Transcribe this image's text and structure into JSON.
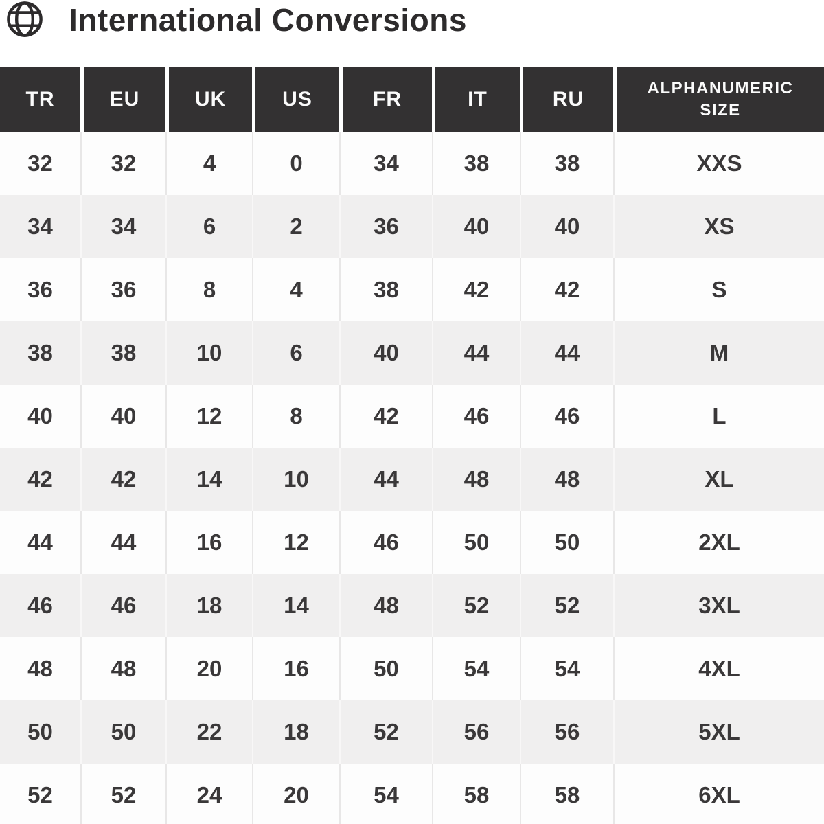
{
  "title": "International Conversions",
  "icons": {
    "header_icon": "globe-icon"
  },
  "colors": {
    "title_text": "#2d2b2c",
    "header_bg": "#333132",
    "header_text": "#fbfbfb",
    "cell_text": "#3a3839",
    "row_bg": "#fdfdfd",
    "row_alt_bg": "#f0efef",
    "divider": "#e8e7e7"
  },
  "table": {
    "columns": [
      {
        "key": "tr",
        "label": "TR"
      },
      {
        "key": "eu",
        "label": "EU"
      },
      {
        "key": "uk",
        "label": "UK"
      },
      {
        "key": "us",
        "label": "US"
      },
      {
        "key": "fr",
        "label": "FR"
      },
      {
        "key": "it",
        "label": "IT"
      },
      {
        "key": "ru",
        "label": "RU"
      },
      {
        "key": "alphanumeric_size",
        "label": "ALPHANUMERIC SIZE"
      }
    ],
    "rows": [
      [
        "32",
        "32",
        "4",
        "0",
        "34",
        "38",
        "38",
        "XXS"
      ],
      [
        "34",
        "34",
        "6",
        "2",
        "36",
        "40",
        "40",
        "XS"
      ],
      [
        "36",
        "36",
        "8",
        "4",
        "38",
        "42",
        "42",
        "S"
      ],
      [
        "38",
        "38",
        "10",
        "6",
        "40",
        "44",
        "44",
        "M"
      ],
      [
        "40",
        "40",
        "12",
        "8",
        "42",
        "46",
        "46",
        "L"
      ],
      [
        "42",
        "42",
        "14",
        "10",
        "44",
        "48",
        "48",
        "XL"
      ],
      [
        "44",
        "44",
        "16",
        "12",
        "46",
        "50",
        "50",
        "2XL"
      ],
      [
        "46",
        "46",
        "18",
        "14",
        "48",
        "52",
        "52",
        "3XL"
      ],
      [
        "48",
        "48",
        "20",
        "16",
        "50",
        "54",
        "54",
        "4XL"
      ],
      [
        "50",
        "50",
        "22",
        "18",
        "52",
        "56",
        "56",
        "5XL"
      ],
      [
        "52",
        "52",
        "24",
        "20",
        "54",
        "58",
        "58",
        "6XL"
      ]
    ]
  }
}
